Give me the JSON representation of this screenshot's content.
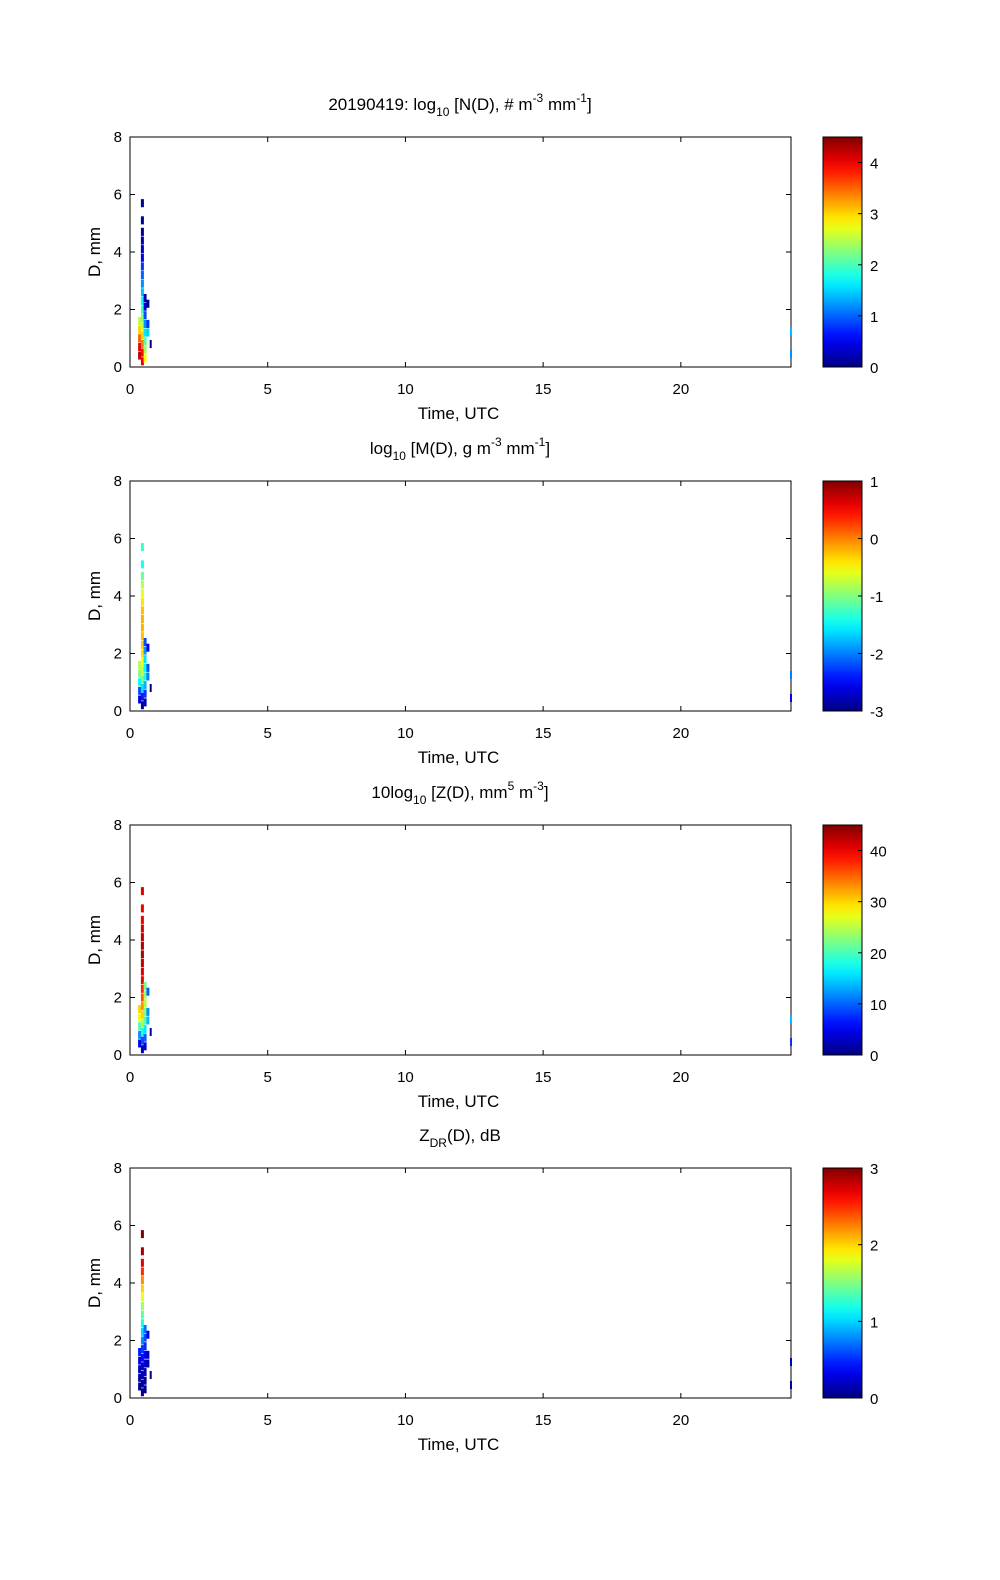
{
  "figure": {
    "date_prefix": "20190419: "
  },
  "chart_data": [
    {
      "type": "heatmap",
      "title": {
        "pre": "log",
        "sub": "10",
        "post": " [N(D), # m",
        "sup1": "-3",
        "mid": " mm",
        "sup2": "-1",
        "end": "]"
      },
      "xlabel": "Time, UTC",
      "ylabel": "D, mm",
      "xlim": [
        0,
        24
      ],
      "ylim": [
        0,
        8
      ],
      "xticks": [
        0,
        5,
        10,
        15,
        20
      ],
      "yticks": [
        0,
        2,
        4,
        6,
        8
      ],
      "colorbar": {
        "clim": [
          0,
          4.5
        ],
        "ticks": [
          0,
          1,
          2,
          3,
          4
        ],
        "colormap": "jet"
      },
      "cells": [
        {
          "x": 0.35,
          "y": 0.4,
          "v": 4.2
        },
        {
          "x": 0.35,
          "y": 0.7,
          "v": 4.0
        },
        {
          "x": 0.35,
          "y": 1.0,
          "v": 3.5
        },
        {
          "x": 0.35,
          "y": 1.3,
          "v": 3.0
        },
        {
          "x": 0.35,
          "y": 1.6,
          "v": 2.5
        },
        {
          "x": 0.45,
          "y": 0.2,
          "v": 4.0
        },
        {
          "x": 0.45,
          "y": 0.5,
          "v": 3.9
        },
        {
          "x": 0.45,
          "y": 0.8,
          "v": 3.4
        },
        {
          "x": 0.45,
          "y": 1.1,
          "v": 3.0
        },
        {
          "x": 0.45,
          "y": 1.4,
          "v": 2.6
        },
        {
          "x": 0.45,
          "y": 1.7,
          "v": 2.3
        },
        {
          "x": 0.45,
          "y": 2.0,
          "v": 2.0
        },
        {
          "x": 0.45,
          "y": 2.3,
          "v": 1.7
        },
        {
          "x": 0.45,
          "y": 2.6,
          "v": 1.4
        },
        {
          "x": 0.45,
          "y": 2.9,
          "v": 1.2
        },
        {
          "x": 0.45,
          "y": 3.2,
          "v": 1.0
        },
        {
          "x": 0.45,
          "y": 3.5,
          "v": 0.8
        },
        {
          "x": 0.45,
          "y": 3.8,
          "v": 0.5
        },
        {
          "x": 0.45,
          "y": 4.1,
          "v": 0.3
        },
        {
          "x": 0.45,
          "y": 4.4,
          "v": 0.2
        },
        {
          "x": 0.45,
          "y": 4.7,
          "v": 0.1
        },
        {
          "x": 0.55,
          "y": 0.3,
          "v": 2.8
        },
        {
          "x": 0.55,
          "y": 0.6,
          "v": 2.4
        },
        {
          "x": 0.55,
          "y": 0.9,
          "v": 2.1
        },
        {
          "x": 0.55,
          "y": 1.2,
          "v": 1.6
        },
        {
          "x": 0.55,
          "y": 1.5,
          "v": 1.2
        },
        {
          "x": 0.55,
          "y": 1.8,
          "v": 0.9
        },
        {
          "x": 0.55,
          "y": 2.1,
          "v": 0.4
        },
        {
          "x": 0.55,
          "y": 2.4,
          "v": 0.2
        },
        {
          "x": 0.65,
          "y": 1.2,
          "v": 1.5
        },
        {
          "x": 0.65,
          "y": 1.5,
          "v": 0.8
        },
        {
          "x": 0.65,
          "y": 2.2,
          "v": 0.1
        },
        {
          "x": 0.75,
          "y": 0.8,
          "v": 0.0
        },
        {
          "x": 0.45,
          "y": 5.1,
          "v": 0.1
        },
        {
          "x": 0.45,
          "y": 5.7,
          "v": 0.1
        },
        {
          "x": 24.0,
          "y": 0.45,
          "v": 1.2
        },
        {
          "x": 24.0,
          "y": 1.25,
          "v": 1.4
        }
      ]
    },
    {
      "type": "heatmap",
      "title": {
        "pre": "log",
        "sub": "10",
        "post": " [M(D), g m",
        "sup1": "-3",
        "mid": " mm",
        "sup2": "-1",
        "end": "]"
      },
      "xlabel": "Time, UTC",
      "ylabel": "D, mm",
      "xlim": [
        0,
        24
      ],
      "ylim": [
        0,
        8
      ],
      "xticks": [
        0,
        5,
        10,
        15,
        20
      ],
      "yticks": [
        0,
        2,
        4,
        6,
        8
      ],
      "colorbar": {
        "clim": [
          -3,
          1
        ],
        "ticks": [
          -3,
          -2,
          -1,
          0,
          1
        ],
        "colormap": "jet"
      },
      "cells": [
        {
          "x": 0.35,
          "y": 0.4,
          "v": -2.7
        },
        {
          "x": 0.35,
          "y": 0.7,
          "v": -2.2
        },
        {
          "x": 0.35,
          "y": 1.0,
          "v": -1.5
        },
        {
          "x": 0.35,
          "y": 1.3,
          "v": -1.0
        },
        {
          "x": 0.35,
          "y": 1.6,
          "v": -0.8
        },
        {
          "x": 0.45,
          "y": 0.2,
          "v": -2.9
        },
        {
          "x": 0.45,
          "y": 0.5,
          "v": -2.4
        },
        {
          "x": 0.45,
          "y": 0.8,
          "v": -1.6
        },
        {
          "x": 0.45,
          "y": 1.1,
          "v": -1.0
        },
        {
          "x": 0.45,
          "y": 1.4,
          "v": -0.7
        },
        {
          "x": 0.45,
          "y": 1.7,
          "v": -0.5
        },
        {
          "x": 0.45,
          "y": 2.0,
          "v": -0.4
        },
        {
          "x": 0.45,
          "y": 2.3,
          "v": -0.3
        },
        {
          "x": 0.45,
          "y": 2.6,
          "v": -0.25
        },
        {
          "x": 0.45,
          "y": 2.9,
          "v": -0.2
        },
        {
          "x": 0.45,
          "y": 3.2,
          "v": -0.2
        },
        {
          "x": 0.45,
          "y": 3.5,
          "v": -0.25
        },
        {
          "x": 0.45,
          "y": 3.8,
          "v": -0.4
        },
        {
          "x": 0.45,
          "y": 4.1,
          "v": -0.6
        },
        {
          "x": 0.45,
          "y": 4.4,
          "v": -0.8
        },
        {
          "x": 0.45,
          "y": 4.7,
          "v": -1.1
        },
        {
          "x": 0.55,
          "y": 0.3,
          "v": -2.8
        },
        {
          "x": 0.55,
          "y": 0.6,
          "v": -2.3
        },
        {
          "x": 0.55,
          "y": 0.9,
          "v": -1.8
        },
        {
          "x": 0.55,
          "y": 1.2,
          "v": -1.4
        },
        {
          "x": 0.55,
          "y": 1.5,
          "v": -1.5
        },
        {
          "x": 0.55,
          "y": 1.8,
          "v": -1.6
        },
        {
          "x": 0.55,
          "y": 2.1,
          "v": -1.9
        },
        {
          "x": 0.55,
          "y": 2.4,
          "v": -2.2
        },
        {
          "x": 0.65,
          "y": 1.2,
          "v": -2.0
        },
        {
          "x": 0.65,
          "y": 1.5,
          "v": -2.2
        },
        {
          "x": 0.65,
          "y": 2.2,
          "v": -2.6
        },
        {
          "x": 0.75,
          "y": 0.8,
          "v": -3.0
        },
        {
          "x": 0.45,
          "y": 5.1,
          "v": -1.4
        },
        {
          "x": 0.45,
          "y": 5.7,
          "v": -1.3
        },
        {
          "x": 24.0,
          "y": 0.45,
          "v": -2.5
        },
        {
          "x": 24.0,
          "y": 1.25,
          "v": -2.0
        }
      ]
    },
    {
      "type": "heatmap",
      "title": {
        "pre": "10log",
        "sub": "10",
        "post": " [Z(D),  mm",
        "sup1": "5",
        "mid": " m",
        "sup2": "-3",
        "end": "]"
      },
      "xlabel": "Time, UTC",
      "ylabel": "D, mm",
      "xlim": [
        0,
        24
      ],
      "ylim": [
        0,
        8
      ],
      "xticks": [
        0,
        5,
        10,
        15,
        20
      ],
      "yticks": [
        0,
        2,
        4,
        6,
        8
      ],
      "colorbar": {
        "clim": [
          0,
          45
        ],
        "ticks": [
          0,
          10,
          20,
          30,
          40
        ],
        "colormap": "jet"
      },
      "cells": [
        {
          "x": 0.35,
          "y": 0.4,
          "v": 5
        },
        {
          "x": 0.35,
          "y": 0.7,
          "v": 12
        },
        {
          "x": 0.35,
          "y": 1.0,
          "v": 20
        },
        {
          "x": 0.35,
          "y": 1.3,
          "v": 27
        },
        {
          "x": 0.35,
          "y": 1.6,
          "v": 30
        },
        {
          "x": 0.45,
          "y": 0.2,
          "v": 3
        },
        {
          "x": 0.45,
          "y": 0.5,
          "v": 9
        },
        {
          "x": 0.45,
          "y": 0.8,
          "v": 18
        },
        {
          "x": 0.45,
          "y": 1.1,
          "v": 25
        },
        {
          "x": 0.45,
          "y": 1.4,
          "v": 30
        },
        {
          "x": 0.45,
          "y": 1.7,
          "v": 33
        },
        {
          "x": 0.45,
          "y": 2.0,
          "v": 36
        },
        {
          "x": 0.45,
          "y": 2.3,
          "v": 38
        },
        {
          "x": 0.45,
          "y": 2.6,
          "v": 40
        },
        {
          "x": 0.45,
          "y": 2.9,
          "v": 41
        },
        {
          "x": 0.45,
          "y": 3.2,
          "v": 42
        },
        {
          "x": 0.45,
          "y": 3.5,
          "v": 43
        },
        {
          "x": 0.45,
          "y": 3.8,
          "v": 43
        },
        {
          "x": 0.45,
          "y": 4.1,
          "v": 42
        },
        {
          "x": 0.45,
          "y": 4.4,
          "v": 41
        },
        {
          "x": 0.45,
          "y": 4.7,
          "v": 40
        },
        {
          "x": 0.55,
          "y": 0.3,
          "v": 4
        },
        {
          "x": 0.55,
          "y": 0.6,
          "v": 10
        },
        {
          "x": 0.55,
          "y": 0.9,
          "v": 16
        },
        {
          "x": 0.55,
          "y": 1.2,
          "v": 21
        },
        {
          "x": 0.55,
          "y": 1.5,
          "v": 23
        },
        {
          "x": 0.55,
          "y": 1.8,
          "v": 25
        },
        {
          "x": 0.55,
          "y": 2.1,
          "v": 24
        },
        {
          "x": 0.55,
          "y": 2.4,
          "v": 22
        },
        {
          "x": 0.65,
          "y": 1.2,
          "v": 14
        },
        {
          "x": 0.65,
          "y": 1.5,
          "v": 12
        },
        {
          "x": 0.65,
          "y": 2.2,
          "v": 10
        },
        {
          "x": 0.75,
          "y": 0.8,
          "v": 1
        },
        {
          "x": 0.45,
          "y": 5.1,
          "v": 40
        },
        {
          "x": 0.45,
          "y": 5.7,
          "v": 41
        },
        {
          "x": 24.0,
          "y": 0.45,
          "v": 8
        },
        {
          "x": 24.0,
          "y": 1.25,
          "v": 14
        }
      ]
    },
    {
      "type": "heatmap",
      "title": {
        "pre": "Z",
        "sub": "DR",
        "post": "(D), dB",
        "sup1": "",
        "mid": "",
        "sup2": "",
        "end": ""
      },
      "xlabel": "Time, UTC",
      "ylabel": "D, mm",
      "xlim": [
        0,
        24
      ],
      "ylim": [
        0,
        8
      ],
      "xticks": [
        0,
        5,
        10,
        15,
        20
      ],
      "yticks": [
        0,
        2,
        4,
        6,
        8
      ],
      "colorbar": {
        "clim": [
          0,
          3
        ],
        "ticks": [
          0,
          1,
          2,
          3
        ],
        "colormap": "jet"
      },
      "cells": [
        {
          "x": 0.35,
          "y": 0.4,
          "v": 0.05
        },
        {
          "x": 0.35,
          "y": 0.7,
          "v": 0.1
        },
        {
          "x": 0.35,
          "y": 1.0,
          "v": 0.2
        },
        {
          "x": 0.35,
          "y": 1.3,
          "v": 0.3
        },
        {
          "x": 0.35,
          "y": 1.6,
          "v": 0.45
        },
        {
          "x": 0.45,
          "y": 0.2,
          "v": 0.05
        },
        {
          "x": 0.45,
          "y": 0.5,
          "v": 0.1
        },
        {
          "x": 0.45,
          "y": 0.8,
          "v": 0.15
        },
        {
          "x": 0.45,
          "y": 1.1,
          "v": 0.25
        },
        {
          "x": 0.45,
          "y": 1.4,
          "v": 0.4
        },
        {
          "x": 0.45,
          "y": 1.7,
          "v": 0.55
        },
        {
          "x": 0.45,
          "y": 2.0,
          "v": 0.8
        },
        {
          "x": 0.45,
          "y": 2.3,
          "v": 1.0
        },
        {
          "x": 0.45,
          "y": 2.6,
          "v": 1.2
        },
        {
          "x": 0.45,
          "y": 2.9,
          "v": 1.4
        },
        {
          "x": 0.45,
          "y": 3.2,
          "v": 1.6
        },
        {
          "x": 0.45,
          "y": 3.5,
          "v": 1.8
        },
        {
          "x": 0.45,
          "y": 3.8,
          "v": 2.0
        },
        {
          "x": 0.45,
          "y": 4.1,
          "v": 2.2
        },
        {
          "x": 0.45,
          "y": 4.4,
          "v": 2.5
        },
        {
          "x": 0.45,
          "y": 4.7,
          "v": 2.7
        },
        {
          "x": 0.55,
          "y": 0.3,
          "v": 0.05
        },
        {
          "x": 0.55,
          "y": 0.6,
          "v": 0.1
        },
        {
          "x": 0.55,
          "y": 0.9,
          "v": 0.15
        },
        {
          "x": 0.55,
          "y": 1.2,
          "v": 0.25
        },
        {
          "x": 0.55,
          "y": 1.5,
          "v": 0.35
        },
        {
          "x": 0.55,
          "y": 1.8,
          "v": 0.5
        },
        {
          "x": 0.55,
          "y": 2.1,
          "v": 0.6
        },
        {
          "x": 0.55,
          "y": 2.4,
          "v": 0.7
        },
        {
          "x": 0.65,
          "y": 1.2,
          "v": 0.1
        },
        {
          "x": 0.65,
          "y": 1.5,
          "v": 0.2
        },
        {
          "x": 0.65,
          "y": 2.2,
          "v": 0.3
        },
        {
          "x": 0.75,
          "y": 0.8,
          "v": 0.0
        },
        {
          "x": 0.45,
          "y": 5.1,
          "v": 2.9
        },
        {
          "x": 0.45,
          "y": 5.7,
          "v": 3.0
        },
        {
          "x": 24.0,
          "y": 0.45,
          "v": 0.1
        },
        {
          "x": 24.0,
          "y": 1.25,
          "v": 0.2
        }
      ]
    }
  ]
}
